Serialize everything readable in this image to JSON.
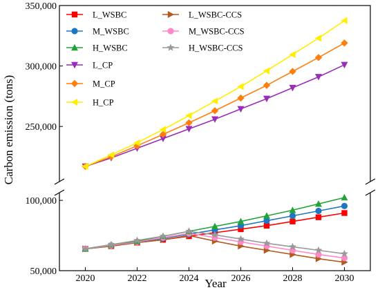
{
  "chart_data": {
    "type": "line",
    "xlabel": "Year",
    "ylabel": "Carbon emission (tons)",
    "xlim": [
      2019,
      2031
    ],
    "x_ticks": [
      2020,
      2022,
      2024,
      2026,
      2028,
      2030
    ],
    "axis_break": true,
    "y_upper_range": [
      205000,
      350000
    ],
    "y_lower_range": [
      50000,
      105000
    ],
    "y_ticks": [
      {
        "value": 350000,
        "label": "350,000"
      },
      {
        "value": 300000,
        "label": "300,000"
      },
      {
        "value": 250000,
        "label": "250,000"
      },
      {
        "value": 100000,
        "label": "100,000"
      },
      {
        "value": 50000,
        "label": "50,000"
      }
    ],
    "legend_placement": "top-left",
    "x": [
      2020,
      2021,
      2022,
      2023,
      2024,
      2025,
      2026,
      2027,
      2028,
      2029,
      2030
    ],
    "series": [
      {
        "name": "L_WSBC",
        "color": "#ff0000",
        "marker": "square",
        "values": [
          65500,
          67500,
          70000,
          72000,
          74500,
          77000,
          79500,
          82000,
          85000,
          88000,
          91000
        ]
      },
      {
        "name": "L_WSBC-CCS",
        "color": "#b35a1f",
        "marker": "triangle-right",
        "values": [
          65500,
          67500,
          70000,
          72000,
          75000,
          71000,
          67500,
          64500,
          61500,
          58500,
          56000
        ]
      },
      {
        "name": "M_WSBC",
        "color": "#1f77c4",
        "marker": "circle",
        "values": [
          65500,
          68000,
          70500,
          73000,
          76000,
          79000,
          82000,
          85500,
          89000,
          92500,
          96000
        ]
      },
      {
        "name": "M_WSBC-CCS",
        "color": "#ff88c8",
        "marker": "circle",
        "values": [
          65500,
          68000,
          70500,
          73500,
          76500,
          73500,
          70500,
          67500,
          64500,
          61500,
          59000
        ]
      },
      {
        "name": "H_WSBC",
        "color": "#21a339",
        "marker": "triangle-up",
        "values": [
          65500,
          68500,
          71000,
          74500,
          78000,
          81500,
          85000,
          89000,
          93000,
          97500,
          102000
        ]
      },
      {
        "name": "H_WSBC-CCS",
        "color": "#999999",
        "marker": "star",
        "values": [
          65500,
          68500,
          71500,
          74500,
          78000,
          75500,
          72500,
          69500,
          67000,
          64500,
          62000
        ]
      },
      {
        "name": "L_CP",
        "color": "#9a2db8",
        "marker": "triangle-down",
        "values": [
          217000,
          224000,
          232000,
          240000,
          248000,
          256000,
          264500,
          273000,
          282000,
          291000,
          301000
        ]
      },
      {
        "name": "M_CP",
        "color": "#ff7f0e",
        "marker": "diamond",
        "values": [
          217000,
          225000,
          234000,
          243500,
          253000,
          263000,
          273500,
          284000,
          295500,
          307000,
          319000
        ]
      },
      {
        "name": "H_CP",
        "color": "#ffee00",
        "marker": "triangle-left",
        "values": [
          217000,
          226500,
          236500,
          247500,
          259000,
          271000,
          283000,
          296000,
          309500,
          323000,
          337500
        ]
      }
    ]
  }
}
